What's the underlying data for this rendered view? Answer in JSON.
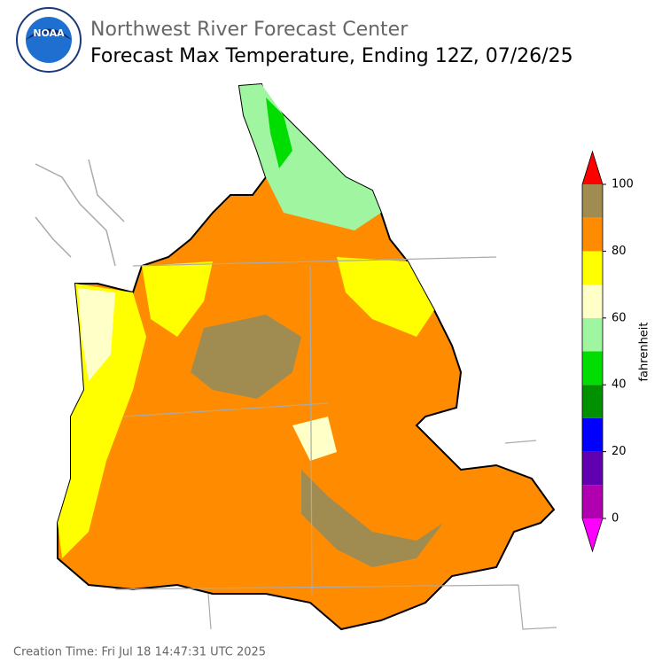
{
  "header": {
    "logo_text": "NOAA",
    "title": "Northwest River Forecast Center",
    "subtitle": "Forecast Max Temperature, Ending 12Z, 07/26/25"
  },
  "colorbar": {
    "label": "fahrenheit",
    "bounds": [
      0,
      10,
      20,
      30,
      40,
      50,
      60,
      70,
      80,
      90,
      100
    ],
    "colors": [
      "#b000b0",
      "#6000b0",
      "#0000ff",
      "#009000",
      "#00dd00",
      "#a0f5a0",
      "#ffffc8",
      "#ffff00",
      "#ff8c00",
      "#a08c50"
    ],
    "under_color": "#ff00ff",
    "over_color": "#ff0000",
    "ticks": [
      0,
      20,
      40,
      60,
      80,
      100
    ]
  },
  "footer": {
    "creation_time": "Creation Time: Fri Jul 18 14:47:31 UTC 2025"
  }
}
